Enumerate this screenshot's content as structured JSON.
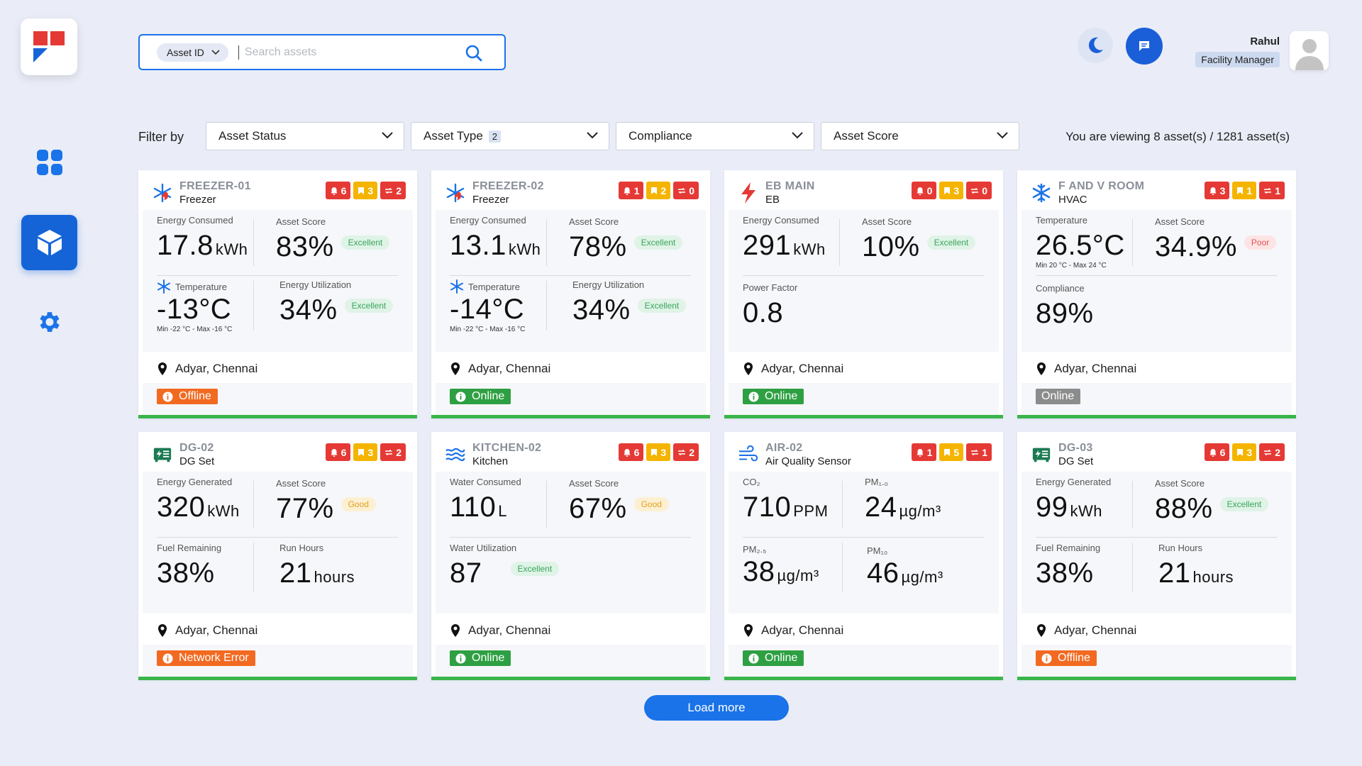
{
  "header": {
    "search": {
      "chip_label": "Asset ID",
      "placeholder": "Search assets",
      "value": ""
    },
    "user": {
      "name": "Rahul",
      "role": "Facility Manager"
    }
  },
  "filters": {
    "label": "Filter by",
    "items": [
      {
        "label": "Asset Status",
        "count": ""
      },
      {
        "label": "Asset Type",
        "count": "2"
      },
      {
        "label": "Compliance",
        "count": ""
      },
      {
        "label": "Asset Score",
        "count": ""
      }
    ],
    "viewing_text": "You are viewing 8 asset(s) / 1281 asset(s)"
  },
  "cards": [
    {
      "id": "FREEZER-01",
      "type": "Freezer",
      "icon": "snowflake-flame-icon",
      "alerts": [
        "6",
        "3",
        "2"
      ],
      "m1": {
        "label": "Energy Consumed",
        "value": "17.8",
        "unit": "kWh"
      },
      "m2": {
        "label": "Asset Score",
        "value": "83%",
        "pill": "Excellent"
      },
      "m3": {
        "label": "Temperature",
        "value": "-13°C",
        "sub": "Min -22 °C - Max -16 °C"
      },
      "m4": {
        "label": "Energy Utilization",
        "value": "34%",
        "pill": "Excellent"
      },
      "location": "Adyar, Chennai",
      "status": "Offline"
    },
    {
      "id": "FREEZER-02",
      "type": "Freezer",
      "icon": "snowflake-flame-icon",
      "alerts": [
        "1",
        "2",
        "0"
      ],
      "m1": {
        "label": "Energy Consumed",
        "value": "13.1",
        "unit": "kWh"
      },
      "m2": {
        "label": "Asset Score",
        "value": "78%",
        "pill": "Excellent"
      },
      "m3": {
        "label": "Temperature",
        "value": "-14°C",
        "sub": "Min -22 °C - Max -16 °C"
      },
      "m4": {
        "label": "Energy Utilization",
        "value": "34%",
        "pill": "Excellent"
      },
      "location": "Adyar, Chennai",
      "status": "Online"
    },
    {
      "id": "EB MAIN",
      "type": "EB",
      "icon": "lightning-icon",
      "alerts": [
        "0",
        "3",
        "0"
      ],
      "m1": {
        "label": "Energy Consumed",
        "value": "291",
        "unit": "kWh"
      },
      "m2": {
        "label": "Asset Score",
        "value": "10%",
        "pill": "Excellent"
      },
      "m3": {
        "label": "Power Factor",
        "value": "0.8"
      },
      "location": "Adyar, Chennai",
      "status": "Online"
    },
    {
      "id": "F AND V ROOM",
      "type": "HVAC",
      "icon": "snowflake-icon",
      "alerts": [
        "3",
        "1",
        "1"
      ],
      "m1": {
        "label": "Temperature",
        "value": "26.5°C",
        "sub": "Min 20 °C - Max 24 °C"
      },
      "m2": {
        "label": "Asset Score",
        "value": "34.9%",
        "pill": "Poor"
      },
      "m3": {
        "label": "Compliance",
        "value": "89%"
      },
      "location": "Adyar, Chennai",
      "status": "Online"
    },
    {
      "id": "DG-02",
      "type": "DG Set",
      "icon": "generator-icon",
      "alerts": [
        "6",
        "3",
        "2"
      ],
      "m1": {
        "label": "Energy Generated",
        "value": "320",
        "unit": "kWh"
      },
      "m2": {
        "label": "Asset Score",
        "value": "77%",
        "pill": "Good"
      },
      "m3": {
        "label": "Fuel Remaining",
        "value": "38%"
      },
      "m4": {
        "label": "Run Hours",
        "value": "21",
        "unit": "hours"
      },
      "location": "Adyar, Chennai",
      "status": "Network Error"
    },
    {
      "id": "KITCHEN-02",
      "type": "Kitchen",
      "icon": "water-waves-icon",
      "alerts": [
        "6",
        "3",
        "2"
      ],
      "m1": {
        "label": "Water Consumed",
        "value": "110",
        "unit": "L"
      },
      "m2": {
        "label": "Asset Score",
        "value": "67%",
        "pill": "Good"
      },
      "m3": {
        "label": "Water Utilization",
        "value": "87",
        "pill": "Excellent"
      },
      "location": "Adyar, Chennai",
      "status": "Online"
    },
    {
      "id": "AIR-02",
      "type": "Air Quality Sensor",
      "icon": "wind-icon",
      "alerts": [
        "1",
        "5",
        "1"
      ],
      "m1": {
        "label": "CO₂",
        "value": "710",
        "unit": "PPM"
      },
      "m2": {
        "label": "PM₁.₀",
        "value": "24",
        "unit": "µg/m³"
      },
      "m3": {
        "label": "PM₂.₅",
        "value": "38",
        "unit": "µg/m³"
      },
      "m4": {
        "label": "PM₁₀",
        "value": "46",
        "unit": "µg/m³"
      },
      "location": "Adyar, Chennai",
      "status": "Online"
    },
    {
      "id": "DG-03",
      "type": "DG Set",
      "icon": "generator-icon",
      "alerts": [
        "6",
        "3",
        "2"
      ],
      "m1": {
        "label": "Energy Generated",
        "value": "99",
        "unit": "kWh"
      },
      "m2": {
        "label": "Asset Score",
        "value": "88%",
        "pill": "Excellent"
      },
      "m3": {
        "label": "Fuel Remaining",
        "value": "38%"
      },
      "m4": {
        "label": "Run Hours",
        "value": "21",
        "unit": "hours"
      },
      "location": "Adyar, Chennai",
      "status": "Offline"
    }
  ],
  "load_more_label": "Load more",
  "colors": {
    "primary": "#1a73e8",
    "alert_red": "#e53935",
    "alert_yellow": "#f5b400",
    "online": "#2ea043",
    "offline": "#f26a21"
  }
}
